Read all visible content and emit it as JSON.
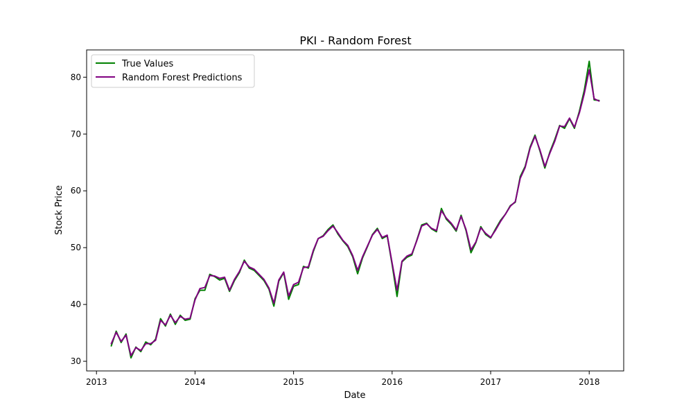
{
  "chart_data": {
    "type": "line",
    "title": "PKI - Random Forest",
    "xlabel": "Date",
    "ylabel": "Stock Price",
    "xlim": [
      2012.9,
      2018.35
    ],
    "ylim": [
      28.3,
      84.8
    ],
    "grid": false,
    "legend_position": "top-left",
    "x_ticks": [
      2013,
      2014,
      2015,
      2016,
      2017,
      2018
    ],
    "x_tick_labels": [
      "2013",
      "2014",
      "2015",
      "2016",
      "2017",
      "2018"
    ],
    "y_ticks": [
      30,
      40,
      50,
      60,
      70,
      80
    ],
    "y_tick_labels": [
      "30",
      "40",
      "50",
      "60",
      "70",
      "80"
    ],
    "x": [
      2013.15,
      2013.2,
      2013.25,
      2013.3,
      2013.35,
      2013.4,
      2013.45,
      2013.5,
      2013.55,
      2013.6,
      2013.65,
      2013.7,
      2013.75,
      2013.8,
      2013.85,
      2013.9,
      2013.95,
      2014.0,
      2014.05,
      2014.1,
      2014.15,
      2014.2,
      2014.25,
      2014.3,
      2014.35,
      2014.4,
      2014.45,
      2014.5,
      2014.55,
      2014.6,
      2014.65,
      2014.7,
      2014.75,
      2014.8,
      2014.85,
      2014.9,
      2014.95,
      2015.0,
      2015.05,
      2015.1,
      2015.15,
      2015.2,
      2015.25,
      2015.3,
      2015.35,
      2015.4,
      2015.45,
      2015.5,
      2015.55,
      2015.6,
      2015.65,
      2015.7,
      2015.75,
      2015.8,
      2015.85,
      2015.9,
      2015.95,
      2016.0,
      2016.05,
      2016.1,
      2016.15,
      2016.2,
      2016.25,
      2016.3,
      2016.35,
      2016.4,
      2016.45,
      2016.5,
      2016.55,
      2016.6,
      2016.65,
      2016.7,
      2016.75,
      2016.8,
      2016.85,
      2016.9,
      2016.95,
      2017.0,
      2017.05,
      2017.1,
      2017.15,
      2017.2,
      2017.25,
      2017.3,
      2017.35,
      2017.4,
      2017.45,
      2017.5,
      2017.55,
      2017.6,
      2017.65,
      2017.7,
      2017.75,
      2017.8,
      2017.85,
      2017.9,
      2017.95,
      2018.0,
      2018.05,
      2018.1
    ],
    "series": [
      {
        "name": "True Values",
        "color": "#008000",
        "values": [
          32.7,
          35.3,
          33.3,
          34.8,
          30.6,
          32.5,
          31.7,
          33.4,
          32.9,
          33.9,
          37.5,
          36.2,
          38.3,
          36.5,
          38.1,
          37.2,
          37.4,
          41.0,
          42.5,
          42.5,
          45.3,
          44.9,
          44.3,
          44.6,
          42.3,
          44.2,
          45.6,
          47.8,
          46.4,
          46.0,
          45.1,
          44.2,
          42.7,
          39.7,
          44.1,
          45.6,
          40.9,
          43.2,
          43.5,
          46.7,
          46.4,
          49.3,
          51.6,
          52.1,
          53.2,
          54.0,
          52.4,
          51.2,
          50.2,
          48.4,
          45.4,
          48.2,
          50.2,
          52.3,
          53.4,
          51.6,
          52.1,
          47.0,
          41.4,
          47.5,
          48.3,
          48.7,
          51.3,
          54.0,
          54.3,
          53.3,
          52.8,
          56.9,
          55.0,
          54.1,
          52.9,
          55.7,
          53.0,
          49.1,
          50.9,
          53.7,
          52.3,
          51.7,
          53.3,
          54.8,
          55.9,
          57.4,
          58.0,
          62.5,
          64.3,
          67.7,
          69.8,
          67.0,
          64.0,
          66.8,
          69.0,
          71.5,
          71.0,
          72.7,
          71.0,
          74.0,
          77.7,
          82.8,
          76.0,
          75.9
        ]
      },
      {
        "name": "Random Forest Predictions",
        "color": "#800080",
        "values": [
          33.1,
          35.1,
          33.5,
          34.6,
          31.0,
          32.4,
          31.9,
          33.1,
          33.1,
          33.7,
          37.2,
          36.4,
          38.1,
          36.8,
          37.9,
          37.4,
          37.6,
          40.8,
          42.8,
          43.0,
          45.1,
          45.0,
          44.6,
          44.8,
          42.5,
          44.4,
          45.8,
          47.6,
          46.6,
          46.2,
          45.3,
          44.4,
          42.9,
          40.2,
          44.3,
          45.7,
          41.5,
          43.5,
          43.9,
          46.5,
          46.6,
          49.5,
          51.6,
          52.0,
          53.0,
          53.8,
          52.6,
          51.3,
          50.4,
          48.6,
          46.0,
          48.4,
          50.3,
          52.2,
          53.2,
          51.8,
          52.2,
          47.3,
          42.5,
          47.6,
          48.5,
          48.9,
          51.2,
          53.8,
          54.2,
          53.4,
          53.0,
          56.5,
          55.2,
          54.3,
          53.1,
          55.5,
          53.2,
          49.6,
          51.0,
          53.5,
          52.5,
          51.8,
          53.1,
          54.6,
          55.9,
          57.3,
          58.1,
          62.2,
          64.1,
          67.5,
          69.6,
          67.2,
          64.3,
          66.6,
          68.7,
          71.4,
          71.3,
          72.8,
          71.2,
          73.7,
          77.1,
          81.3,
          76.2,
          75.8
        ]
      }
    ]
  }
}
